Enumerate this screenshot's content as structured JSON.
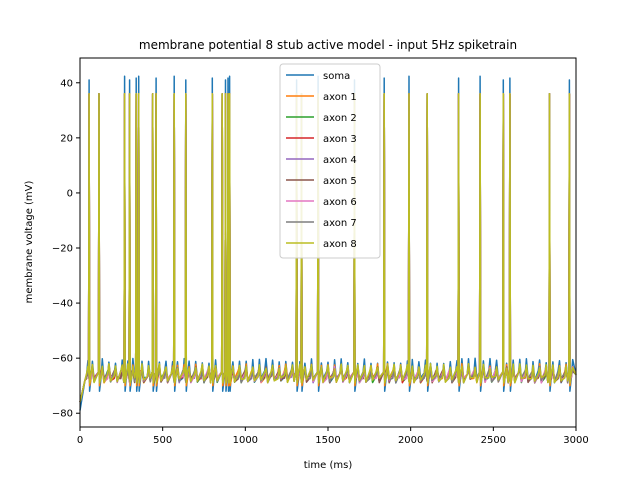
{
  "chart_data": {
    "type": "line",
    "title": "membrane potential 8 stub active model - input 5Hz spiketrain",
    "xlabel": "time (ms)",
    "ylabel": "membrane voltage (mV)",
    "xlim": [
      0,
      3000
    ],
    "ylim": [
      -85,
      49
    ],
    "xticks": [
      0,
      500,
      1000,
      1500,
      2000,
      2500,
      3000
    ],
    "yticks": [
      -80,
      -60,
      -40,
      -20,
      0,
      20,
      40
    ],
    "grid": false,
    "legend_position": "top-center",
    "spike_times": [
      55,
      115,
      270,
      300,
      340,
      355,
      440,
      460,
      570,
      640,
      800,
      860,
      880,
      895,
      905,
      1310,
      1340,
      1440,
      1660,
      1840,
      1990,
      2100,
      2290,
      2420,
      2560,
      2600,
      2840,
      2960
    ],
    "baseline_mv": -66,
    "series": [
      {
        "name": "soma",
        "color": "#1f77b4",
        "peak": 41,
        "trough": -72,
        "epsp": -61
      },
      {
        "name": "axon 1",
        "color": "#ff7f0e",
        "peak": 36,
        "trough": -70,
        "epsp": -63
      },
      {
        "name": "axon 2",
        "color": "#2ca02c",
        "peak": 36,
        "trough": -68,
        "epsp": -64
      },
      {
        "name": "axon 3",
        "color": "#d62728",
        "peak": 36,
        "trough": -68,
        "epsp": -64
      },
      {
        "name": "axon 4",
        "color": "#9467bd",
        "peak": 36,
        "trough": -68,
        "epsp": -64
      },
      {
        "name": "axon 5",
        "color": "#8c564b",
        "peak": 36,
        "trough": -67,
        "epsp": -64
      },
      {
        "name": "axon 6",
        "color": "#e377c2",
        "peak": 36,
        "trough": -68,
        "epsp": -64
      },
      {
        "name": "axon 7",
        "color": "#7f7f7f",
        "peak": 36,
        "trough": -68,
        "epsp": -64
      },
      {
        "name": "axon 8",
        "color": "#bcbd22",
        "peak": 36,
        "trough": -69,
        "epsp": -63
      }
    ]
  }
}
